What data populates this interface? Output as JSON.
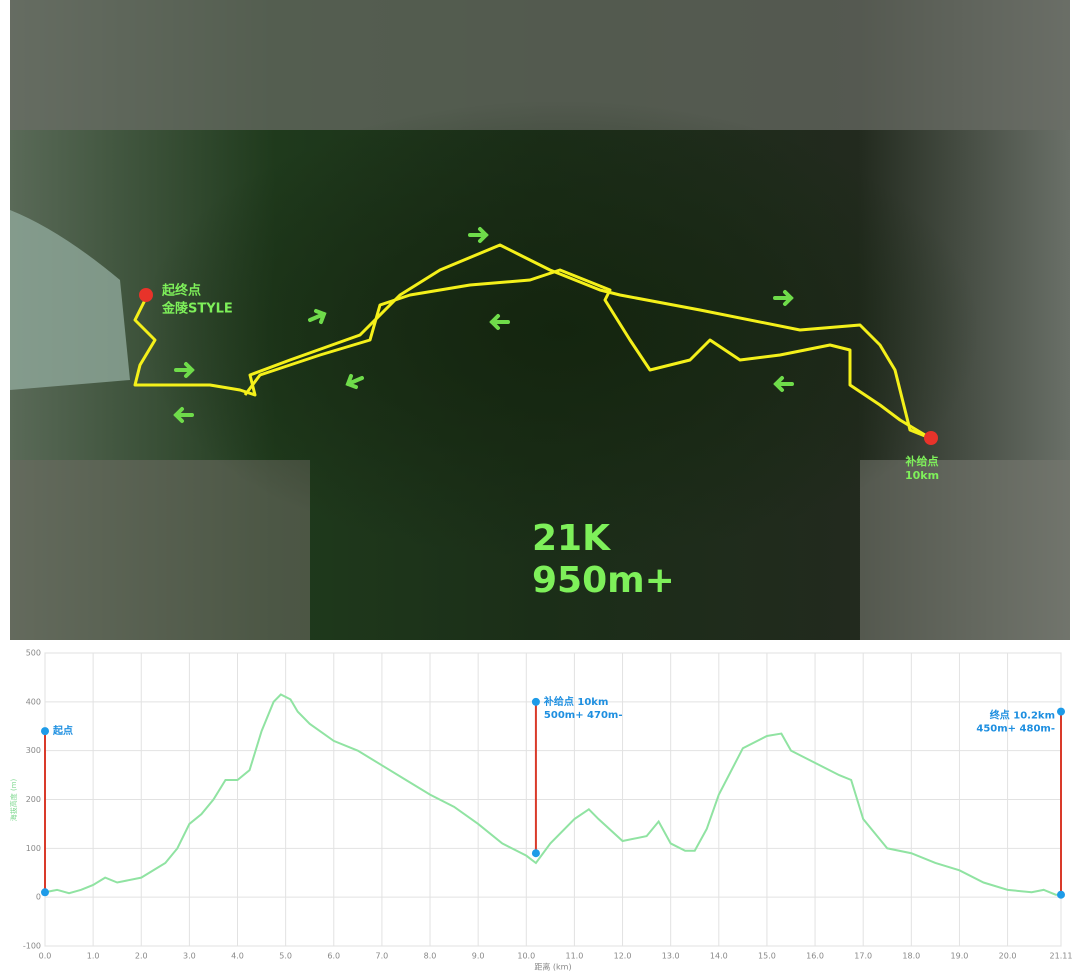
{
  "map": {
    "start_label": [
      "起终点",
      "金陵STYLE"
    ],
    "aid_label": [
      "补给点",
      "10km"
    ],
    "distance": "21K",
    "climb": "950m+"
  },
  "chart_data": {
    "type": "line",
    "ylabel": "海拔高度 (m)",
    "xlabel": "距离 (km)",
    "ylim": [
      -100,
      500
    ],
    "yticks": [
      -100,
      0,
      100,
      200,
      300,
      400,
      500
    ],
    "xlim": [
      0,
      21.11
    ],
    "xticks": [
      {
        "value": 0,
        "label": "0.0"
      },
      {
        "value": 1,
        "label": "1.0"
      },
      {
        "value": 2,
        "label": "2.0"
      },
      {
        "value": 3,
        "label": "3.0"
      },
      {
        "value": 4,
        "label": "4.0"
      },
      {
        "value": 5,
        "label": "5.0"
      },
      {
        "value": 6,
        "label": "6.0"
      },
      {
        "value": 7,
        "label": "7.0"
      },
      {
        "value": 8,
        "label": "8.0"
      },
      {
        "value": 9,
        "label": "9.0"
      },
      {
        "value": 10,
        "label": "10.0"
      },
      {
        "value": 11,
        "label": "11.0"
      },
      {
        "value": 12,
        "label": "12.0"
      },
      {
        "value": 13,
        "label": "13.0"
      },
      {
        "value": 14,
        "label": "14.0"
      },
      {
        "value": 15,
        "label": "15.0"
      },
      {
        "value": 16,
        "label": "16.0"
      },
      {
        "value": 17,
        "label": "17.0"
      },
      {
        "value": 18,
        "label": "18.0"
      },
      {
        "value": 19,
        "label": "19.0"
      },
      {
        "value": 20,
        "label": "20.0"
      },
      21.11
    ],
    "grid": true,
    "series": [
      {
        "color": "#90e3a2",
        "x": [
          0,
          0.25,
          0.5,
          0.75,
          1,
          1.25,
          1.5,
          2,
          2.5,
          2.75,
          3,
          3.25,
          3.5,
          3.75,
          4,
          4.25,
          4.5,
          4.75,
          4.9,
          5.1,
          5.25,
          5.5,
          6,
          6.5,
          7,
          7.5,
          8,
          8.5,
          9,
          9.5,
          10,
          10.2,
          10.5,
          11,
          11.3,
          11.5,
          12,
          12.5,
          12.75,
          13,
          13.3,
          13.5,
          13.75,
          14,
          14.5,
          15,
          15.3,
          15.5,
          16,
          16.5,
          16.75,
          17,
          17.5,
          18,
          18.5,
          19,
          19.5,
          20,
          20.5,
          20.75,
          21,
          21.11
        ],
        "values": [
          10,
          15,
          8,
          15,
          25,
          40,
          30,
          40,
          70,
          100,
          150,
          170,
          200,
          240,
          240,
          260,
          340,
          400,
          415,
          405,
          380,
          355,
          320,
          300,
          270,
          240,
          210,
          185,
          150,
          110,
          85,
          70,
          110,
          160,
          180,
          160,
          115,
          125,
          155,
          110,
          95,
          95,
          140,
          210,
          305,
          330,
          335,
          300,
          275,
          250,
          240,
          160,
          100,
          90,
          70,
          55,
          30,
          15,
          10,
          15,
          5,
          5
        ]
      }
    ],
    "markers": [
      {
        "x": 0,
        "low": 10,
        "high": 340,
        "lines": [
          "起点"
        ]
      },
      {
        "x": 10.2,
        "low": 90,
        "high": 400,
        "lines": [
          "补给点  10km",
          "500m+ 470m-"
        ]
      },
      {
        "x": 21.11,
        "low": 5,
        "high": 380,
        "lines": [
          "终点  10.2km",
          "450m+ 480m-"
        ]
      }
    ]
  }
}
